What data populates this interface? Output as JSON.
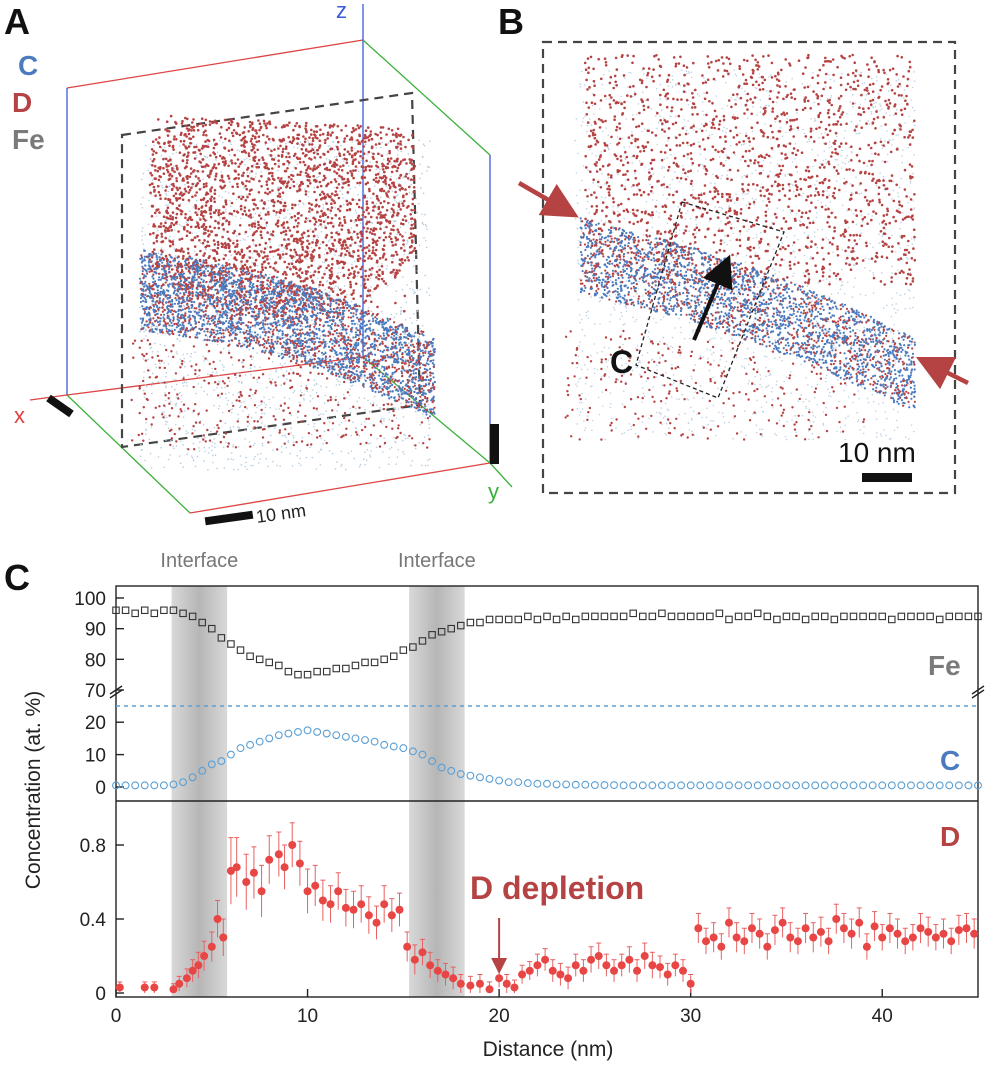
{
  "panels": {
    "a": {
      "letter": "A",
      "legend": [
        {
          "label": "C",
          "color": "#4a7bbf"
        },
        {
          "label": "D",
          "color": "#b64343"
        },
        {
          "label": "Fe",
          "color": "#7a7a7a"
        }
      ],
      "axes": {
        "x": "x",
        "y": "y",
        "z": "z"
      },
      "scale_bar": "10 nm"
    },
    "b": {
      "letter": "B",
      "roi_label": "C",
      "scale_bar": "10 nm"
    },
    "c": {
      "letter": "C",
      "interface_label": "Interface",
      "annotation": "D depletion",
      "species_labels": {
        "fe": "Fe",
        "c": "C",
        "d": "D"
      }
    }
  },
  "colors": {
    "carbon": "#4a7bbf",
    "deuterium": "#b64343",
    "fe_markers": "#333333",
    "c_markers": "#5a9fd4",
    "d_markers": "#e84545",
    "fe_label": "#7a7a7a",
    "interface_band": "#b8b8b8"
  },
  "chart_data": {
    "type": "scatter",
    "xlabel": "Distance (nm)",
    "ylabel": "Concentration (at. %)",
    "x_ticks": [
      0,
      10,
      20,
      30,
      40
    ],
    "xlim": [
      0,
      45
    ],
    "interfaces": [
      [
        2.9,
        5.8
      ],
      [
        15.3,
        18.2
      ]
    ],
    "fe_axis": {
      "ylim": [
        70,
        100
      ],
      "ticks": [
        70,
        80,
        90,
        100
      ]
    },
    "c_axis": {
      "ylim": [
        0,
        25
      ],
      "ticks": [
        0,
        10,
        20
      ],
      "reference_line": 25
    },
    "d_axis": {
      "ylim": [
        0,
        1.0
      ],
      "ticks": [
        "0",
        "0.4",
        "0.8"
      ],
      "tick_values": [
        0,
        0.4,
        0.8
      ]
    },
    "annotation_x": 20,
    "series": [
      {
        "name": "Fe",
        "x": [
          0.0,
          0.5,
          1.0,
          1.5,
          2.0,
          2.5,
          3.0,
          3.5,
          4.0,
          4.5,
          5.0,
          5.5,
          6.0,
          6.5,
          7.0,
          7.5,
          8.0,
          8.5,
          9.0,
          9.5,
          10.0,
          10.5,
          11.0,
          11.5,
          12.0,
          12.5,
          13.0,
          13.5,
          14.0,
          14.5,
          15.0,
          15.5,
          16.0,
          16.5,
          17.0,
          17.5,
          18.0,
          18.5,
          19.0,
          19.5,
          20.0,
          20.5,
          21.0,
          21.5,
          22.0,
          22.5,
          23.0,
          23.5,
          24.0,
          24.5,
          25.0,
          25.5,
          26.0,
          26.5,
          27.0,
          27.5,
          28.0,
          28.5,
          29.0,
          29.5,
          30.0,
          30.5,
          31.0,
          31.5,
          32.0,
          32.5,
          33.0,
          33.5,
          34.0,
          34.5,
          35.0,
          35.5,
          36.0,
          36.5,
          37.0,
          37.5,
          38.0,
          38.5,
          39.0,
          39.5,
          40.0,
          40.5,
          41.0,
          41.5,
          42.0,
          42.5,
          43.0,
          43.5,
          44.0,
          44.5,
          45.0
        ],
        "values": [
          96,
          96,
          95,
          96,
          95,
          96,
          96,
          95,
          94,
          92,
          90,
          87,
          85,
          83,
          81,
          80,
          79,
          78,
          76,
          75,
          75,
          76,
          76,
          77,
          77,
          78,
          79,
          79,
          80,
          81,
          83,
          84,
          86,
          88,
          89,
          90,
          91,
          92,
          92,
          93,
          93,
          93,
          93,
          94,
          93,
          94,
          93,
          94,
          93,
          94,
          94,
          94,
          94,
          94,
          95,
          94,
          94,
          95,
          94,
          94,
          94,
          94,
          94,
          95,
          93,
          94,
          94,
          95,
          94,
          93,
          94,
          94,
          93,
          94,
          94,
          93,
          94,
          94,
          94,
          94,
          94,
          93,
          94,
          94,
          94,
          94,
          93,
          94,
          94,
          94,
          94
        ]
      },
      {
        "name": "C",
        "x": [
          0.0,
          0.5,
          1.0,
          1.5,
          2.0,
          2.5,
          3.0,
          3.5,
          4.0,
          4.5,
          5.0,
          5.5,
          6.0,
          6.5,
          7.0,
          7.5,
          8.0,
          8.5,
          9.0,
          9.5,
          10.0,
          10.5,
          11.0,
          11.5,
          12.0,
          12.5,
          13.0,
          13.5,
          14.0,
          14.5,
          15.0,
          15.5,
          16.0,
          16.5,
          17.0,
          17.5,
          18.0,
          18.5,
          19.0,
          19.5,
          20.0,
          20.5,
          21.0,
          21.5,
          22.0,
          22.5,
          23.0,
          23.5,
          24.0,
          24.5,
          25.0,
          25.5,
          26.0,
          26.5,
          27.0,
          27.5,
          28.0,
          28.5,
          29.0,
          29.5,
          30.0,
          30.5,
          31.0,
          31.5,
          32.0,
          32.5,
          33.0,
          33.5,
          34.0,
          34.5,
          35.0,
          35.5,
          36.0,
          36.5,
          37.0,
          37.5,
          38.0,
          38.5,
          39.0,
          39.5,
          40.0,
          40.5,
          41.0,
          41.5,
          42.0,
          42.5,
          43.0,
          43.5,
          44.0,
          44.5,
          45.0
        ],
        "values": [
          0.5,
          0.5,
          0.5,
          0.5,
          0.5,
          0.5,
          0.8,
          1.5,
          3,
          5,
          7,
          8,
          10,
          12,
          13,
          14,
          15,
          16,
          16.5,
          17,
          17.5,
          17,
          16.5,
          16,
          15.5,
          15,
          14.5,
          14,
          13,
          12.5,
          12,
          11,
          10,
          8,
          6,
          5,
          4,
          3.5,
          3,
          2.5,
          2,
          1.5,
          1.5,
          1.2,
          1,
          1,
          0.8,
          0.8,
          0.7,
          0.7,
          0.6,
          0.6,
          0.6,
          0.5,
          0.5,
          0.5,
          0.5,
          0.5,
          0.5,
          0.5,
          0.5,
          0.5,
          0.5,
          0.5,
          0.5,
          0.5,
          0.5,
          0.5,
          0.5,
          0.5,
          0.5,
          0.5,
          0.5,
          0.5,
          0.5,
          0.5,
          0.5,
          0.5,
          0.5,
          0.5,
          0.5,
          0.5,
          0.5,
          0.5,
          0.5,
          0.5,
          0.5,
          0.5,
          0.5,
          0.5,
          0.5
        ]
      },
      {
        "name": "D",
        "x": [
          0.2,
          1.5,
          2.0,
          3.0,
          3.3,
          3.7,
          4.0,
          4.3,
          4.6,
          5.0,
          5.3,
          5.6,
          6.0,
          6.3,
          6.8,
          7.2,
          7.6,
          8.0,
          8.5,
          8.8,
          9.2,
          9.6,
          10.0,
          10.4,
          10.8,
          11.2,
          11.6,
          12.0,
          12.4,
          12.8,
          13.2,
          13.6,
          14.0,
          14.4,
          14.8,
          15.2,
          15.6,
          16.0,
          16.4,
          16.8,
          17.2,
          17.6,
          18.0,
          18.5,
          19.0,
          19.5,
          20.0,
          20.4,
          20.8,
          21.2,
          21.6,
          22.0,
          22.4,
          22.8,
          23.2,
          23.6,
          24.0,
          24.4,
          24.8,
          25.2,
          25.6,
          26.0,
          26.4,
          26.8,
          27.2,
          27.6,
          28.0,
          28.4,
          28.8,
          29.2,
          29.6,
          30.0,
          30.4,
          30.8,
          31.2,
          31.6,
          32.0,
          32.4,
          32.8,
          33.2,
          33.6,
          34.0,
          34.4,
          34.8,
          35.2,
          35.6,
          36.0,
          36.4,
          36.8,
          37.2,
          37.6,
          38.0,
          38.4,
          38.8,
          39.2,
          39.6,
          40.0,
          40.4,
          40.8,
          41.2,
          41.6,
          42.0,
          42.4,
          42.8,
          43.2,
          43.6,
          44.0,
          44.4,
          44.8
        ],
        "values": [
          0.03,
          0.03,
          0.03,
          0.02,
          0.05,
          0.08,
          0.12,
          0.15,
          0.2,
          0.25,
          0.4,
          0.3,
          0.66,
          0.68,
          0.6,
          0.65,
          0.55,
          0.72,
          0.75,
          0.68,
          0.8,
          0.7,
          0.55,
          0.58,
          0.5,
          0.48,
          0.55,
          0.46,
          0.45,
          0.48,
          0.42,
          0.38,
          0.48,
          0.42,
          0.45,
          0.25,
          0.18,
          0.22,
          0.15,
          0.12,
          0.1,
          0.08,
          0.05,
          0.04,
          0.05,
          0.02,
          0.08,
          0.05,
          0.03,
          0.1,
          0.12,
          0.15,
          0.18,
          0.12,
          0.1,
          0.08,
          0.15,
          0.12,
          0.18,
          0.2,
          0.15,
          0.12,
          0.15,
          0.18,
          0.12,
          0.2,
          0.15,
          0.14,
          0.1,
          0.15,
          0.12,
          0.05,
          0.35,
          0.28,
          0.3,
          0.25,
          0.38,
          0.3,
          0.28,
          0.35,
          0.32,
          0.25,
          0.34,
          0.38,
          0.3,
          0.28,
          0.35,
          0.3,
          0.33,
          0.28,
          0.4,
          0.35,
          0.32,
          0.38,
          0.25,
          0.36,
          0.3,
          0.35,
          0.32,
          0.28,
          0.3,
          0.35,
          0.33,
          0.3,
          0.32,
          0.28,
          0.34,
          0.35,
          0.32
        ],
        "errors": [
          0.03,
          0.03,
          0.03,
          0.03,
          0.04,
          0.05,
          0.06,
          0.07,
          0.08,
          0.08,
          0.1,
          0.1,
          0.18,
          0.16,
          0.15,
          0.14,
          0.14,
          0.13,
          0.12,
          0.12,
          0.12,
          0.12,
          0.12,
          0.11,
          0.11,
          0.1,
          0.1,
          0.1,
          0.1,
          0.1,
          0.1,
          0.09,
          0.1,
          0.09,
          0.09,
          0.08,
          0.08,
          0.07,
          0.07,
          0.06,
          0.06,
          0.06,
          0.05,
          0.05,
          0.05,
          0.04,
          0.05,
          0.05,
          0.04,
          0.05,
          0.05,
          0.06,
          0.06,
          0.06,
          0.06,
          0.06,
          0.06,
          0.06,
          0.07,
          0.07,
          0.06,
          0.06,
          0.06,
          0.07,
          0.06,
          0.07,
          0.07,
          0.06,
          0.06,
          0.06,
          0.06,
          0.05,
          0.08,
          0.07,
          0.08,
          0.07,
          0.08,
          0.08,
          0.07,
          0.08,
          0.08,
          0.07,
          0.08,
          0.08,
          0.08,
          0.07,
          0.08,
          0.08,
          0.08,
          0.07,
          0.08,
          0.08,
          0.08,
          0.08,
          0.07,
          0.08,
          0.07,
          0.08,
          0.08,
          0.07,
          0.07,
          0.08,
          0.08,
          0.07,
          0.08,
          0.07,
          0.08,
          0.08,
          0.08
        ]
      }
    ]
  }
}
